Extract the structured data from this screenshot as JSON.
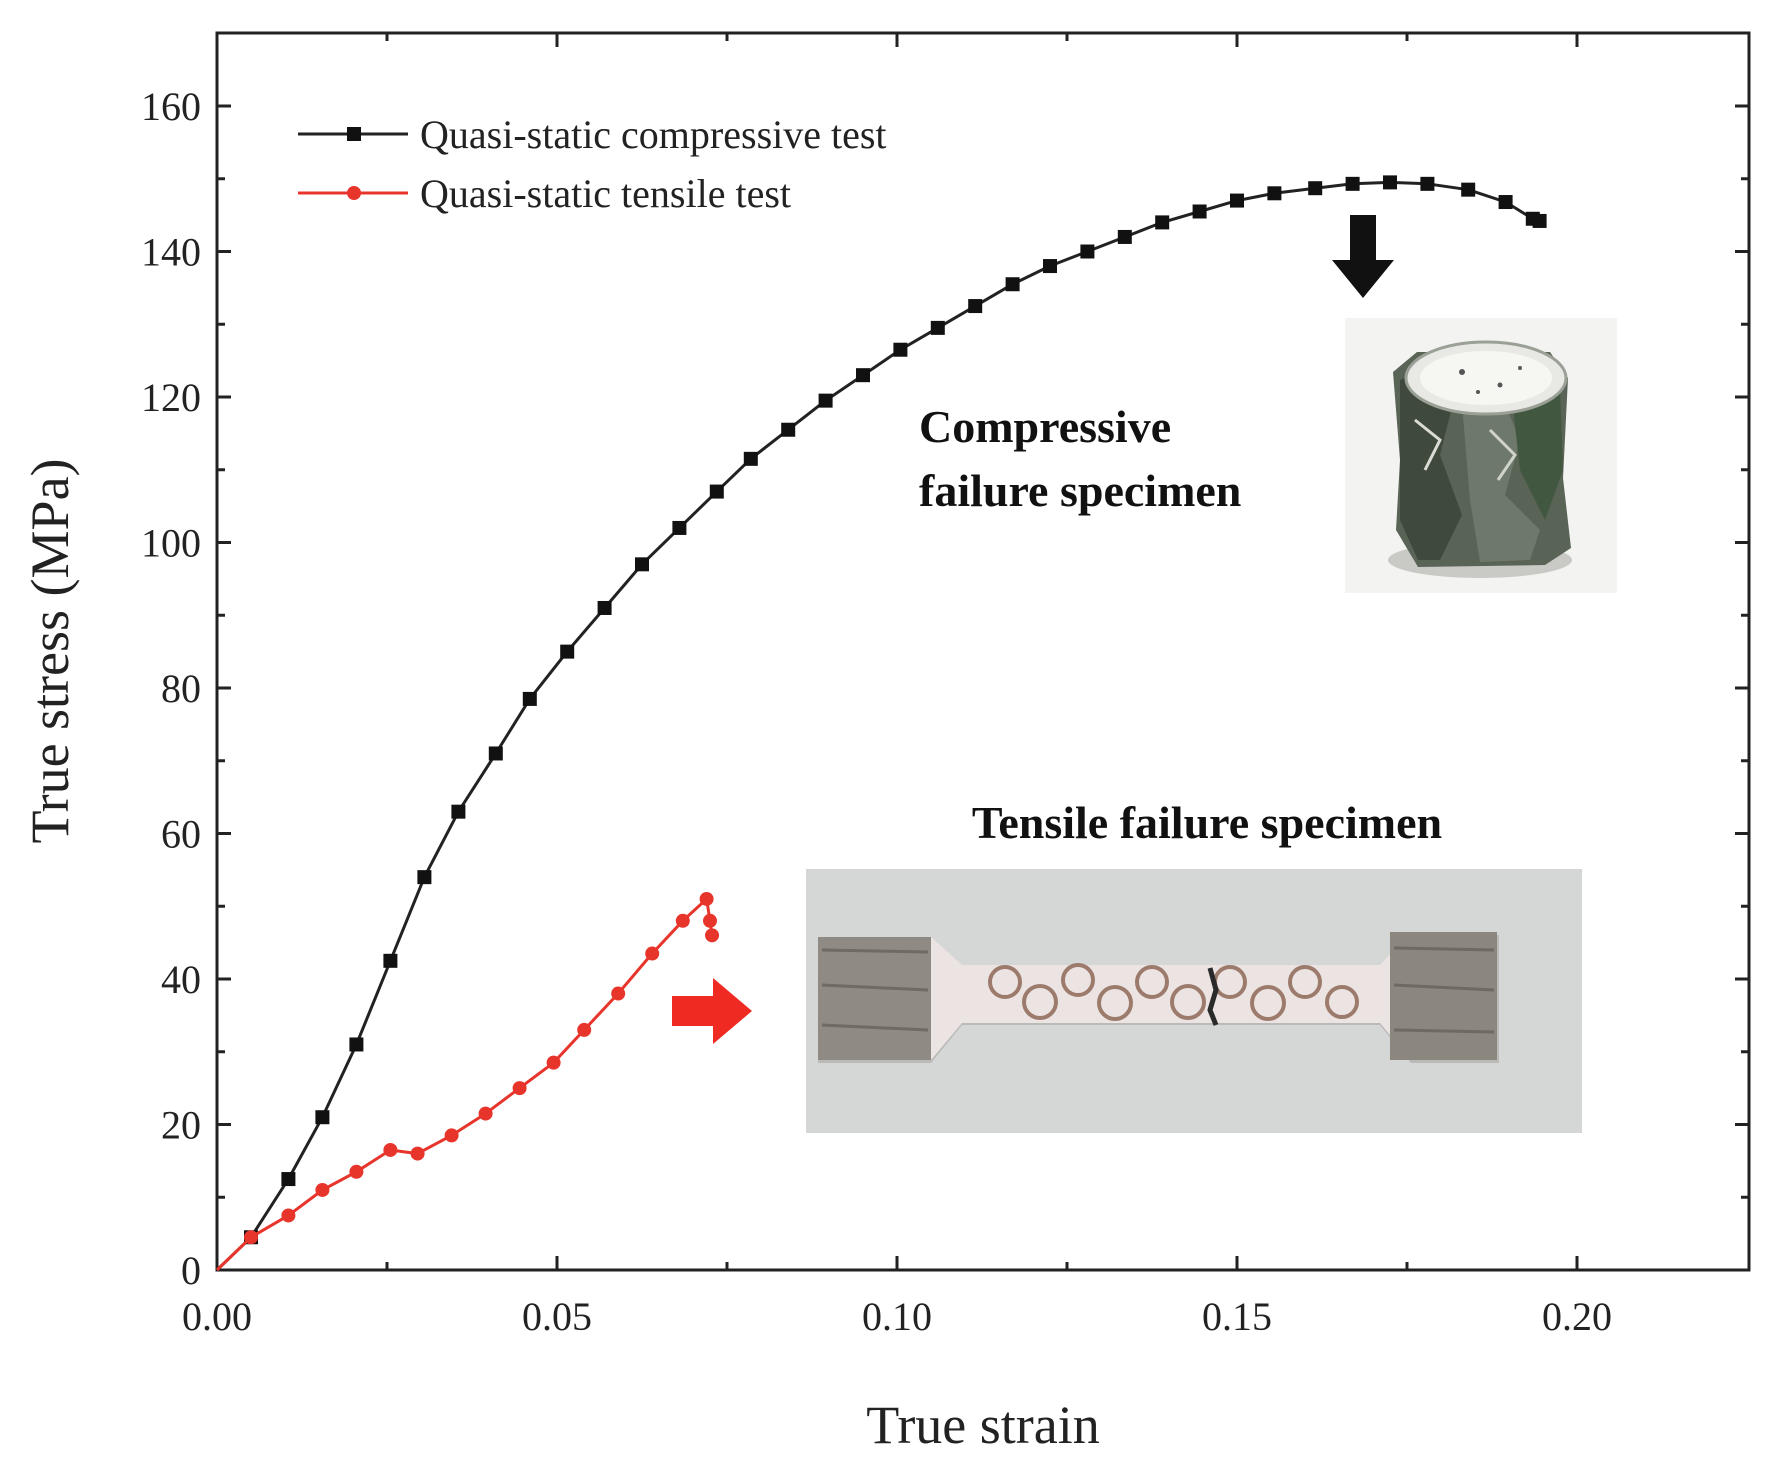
{
  "chart_data": {
    "type": "line",
    "xlabel": "True strain",
    "ylabel": "True stress (MPa)",
    "xlim": [
      0,
      0.225
    ],
    "ylim": [
      0,
      170
    ],
    "x_ticks": [
      "0.00",
      "0.05",
      "0.10",
      "0.15",
      "0.20"
    ],
    "x_tick_values": [
      0,
      0.05,
      0.1,
      0.15,
      0.2
    ],
    "y_ticks": [
      "0",
      "20",
      "40",
      "60",
      "80",
      "100",
      "120",
      "140",
      "160"
    ],
    "y_tick_values": [
      0,
      20,
      40,
      60,
      80,
      100,
      120,
      140,
      160
    ],
    "grid": false,
    "legend_position": "top-left",
    "series": [
      {
        "name": "Quasi-static compressive test",
        "color": "#222222",
        "marker": "square",
        "x": [
          0,
          0.005,
          0.0105,
          0.0155,
          0.0205,
          0.0255,
          0.0305,
          0.0355,
          0.041,
          0.046,
          0.0515,
          0.057,
          0.0625,
          0.068,
          0.0735,
          0.0785,
          0.084,
          0.0895,
          0.095,
          0.1005,
          0.106,
          0.1115,
          0.117,
          0.1225,
          0.128,
          0.1335,
          0.139,
          0.1445,
          0.15,
          0.1555,
          0.1615,
          0.167,
          0.1725,
          0.178,
          0.184,
          0.1895,
          0.1935,
          0.1945
        ],
        "y": [
          0,
          4.5,
          12.5,
          21,
          31,
          42.5,
          54,
          63,
          71,
          78.5,
          85,
          91,
          97,
          102,
          107,
          111.5,
          115.5,
          119.5,
          123,
          126.5,
          129.5,
          132.5,
          135.5,
          138,
          140,
          142,
          144,
          145.5,
          147,
          148,
          148.7,
          149.3,
          149.5,
          149.3,
          148.5,
          146.8,
          144.5,
          144.2
        ]
      },
      {
        "name": "Quasi-static tensile test",
        "color": "#e8352c",
        "marker": "circle",
        "x": [
          0,
          0.005,
          0.0105,
          0.0155,
          0.0205,
          0.0255,
          0.0295,
          0.0345,
          0.0395,
          0.0445,
          0.0495,
          0.054,
          0.059,
          0.064,
          0.0685,
          0.072,
          0.0725,
          0.0728
        ],
        "y": [
          0,
          4.5,
          7.5,
          11,
          13.5,
          16.5,
          16,
          18.5,
          21.5,
          25,
          28.5,
          33,
          38,
          43.5,
          48,
          51,
          48,
          46
        ]
      }
    ],
    "annotations": [
      "Compressive",
      "failure specimen",
      "Tensile failure specimen"
    ]
  }
}
